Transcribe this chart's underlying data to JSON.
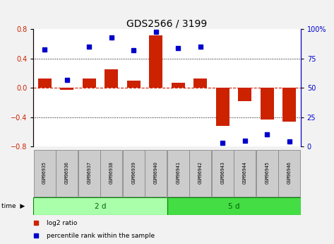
{
  "title": "GDS2566 / 3199",
  "samples": [
    "GSM96935",
    "GSM96936",
    "GSM96937",
    "GSM96938",
    "GSM96939",
    "GSM96940",
    "GSM96941",
    "GSM96942",
    "GSM96943",
    "GSM96944",
    "GSM96945",
    "GSM96946"
  ],
  "log2_ratio": [
    0.13,
    -0.03,
    0.13,
    0.25,
    0.1,
    0.72,
    0.07,
    0.13,
    -0.52,
    -0.18,
    -0.43,
    -0.46
  ],
  "percentile_rank": [
    83,
    57,
    85,
    93,
    82,
    98,
    84,
    85,
    3,
    5,
    10,
    4
  ],
  "groups": [
    {
      "label": "2 d",
      "start": 0,
      "end": 6,
      "color": "#aaffaa"
    },
    {
      "label": "5 d",
      "start": 6,
      "end": 12,
      "color": "#44dd44"
    }
  ],
  "ylim_left": [
    -0.8,
    0.8
  ],
  "ylim_right": [
    0,
    100
  ],
  "bar_color": "#cc2200",
  "dot_color": "#0000cc",
  "hline_color": "#cc2200",
  "background_color": "#ffffff",
  "title_color": "#000000",
  "group_label_color": "#006600",
  "title_fontsize": 10,
  "tick_fontsize": 7,
  "bar_width": 0.6
}
